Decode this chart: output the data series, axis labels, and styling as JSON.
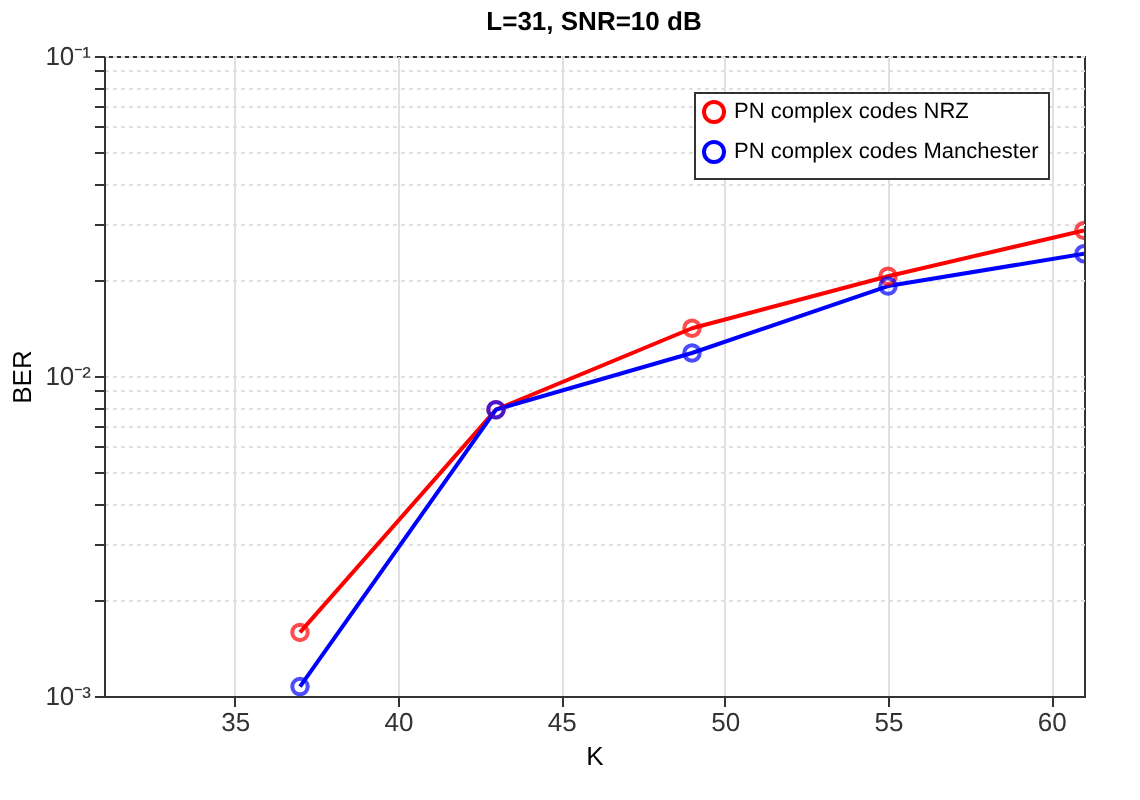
{
  "chart_data": {
    "type": "line",
    "title": "L=31, SNR=10 dB",
    "xlabel": "K",
    "ylabel": "BER",
    "x": [
      37,
      43,
      49,
      55,
      61
    ],
    "series": [
      {
        "name": "PN complex codes NRZ",
        "color": "#ff0000",
        "values": [
          0.00158,
          0.00785,
          0.0141,
          0.0205,
          0.0285
        ]
      },
      {
        "name": "PN complex codes Manchester",
        "color": "#0000ff",
        "values": [
          0.00107,
          0.00785,
          0.0118,
          0.0191,
          0.0241
        ]
      }
    ],
    "xlim": [
      31,
      61
    ],
    "xticks": [
      35,
      40,
      45,
      50,
      55,
      60
    ],
    "ylim": [
      0.001,
      0.1
    ],
    "log": true,
    "yticks": [
      {
        "value": 0.001,
        "label": "10⁻³"
      },
      {
        "value": 0.002,
        "label": null
      },
      {
        "value": 0.003,
        "label": null
      },
      {
        "value": 0.004,
        "label": null
      },
      {
        "value": 0.005,
        "label": null
      },
      {
        "value": 0.006,
        "label": null
      },
      {
        "value": 0.007,
        "label": null
      },
      {
        "value": 0.008,
        "label": null
      },
      {
        "value": 0.009,
        "label": null
      },
      {
        "value": 0.01,
        "label": "10⁻²"
      },
      {
        "value": 0.02,
        "label": null
      },
      {
        "value": 0.03,
        "label": null
      },
      {
        "value": 0.04,
        "label": null
      },
      {
        "value": 0.05,
        "label": null
      },
      {
        "value": 0.06,
        "label": null
      },
      {
        "value": 0.07,
        "label": null
      },
      {
        "value": 0.08,
        "label": null
      },
      {
        "value": 0.09,
        "label": null
      },
      {
        "value": 0.1,
        "label": "10⁻¹"
      }
    ],
    "grid": true,
    "legend": "top right",
    "marker": "circle",
    "line_style": "solid"
  }
}
